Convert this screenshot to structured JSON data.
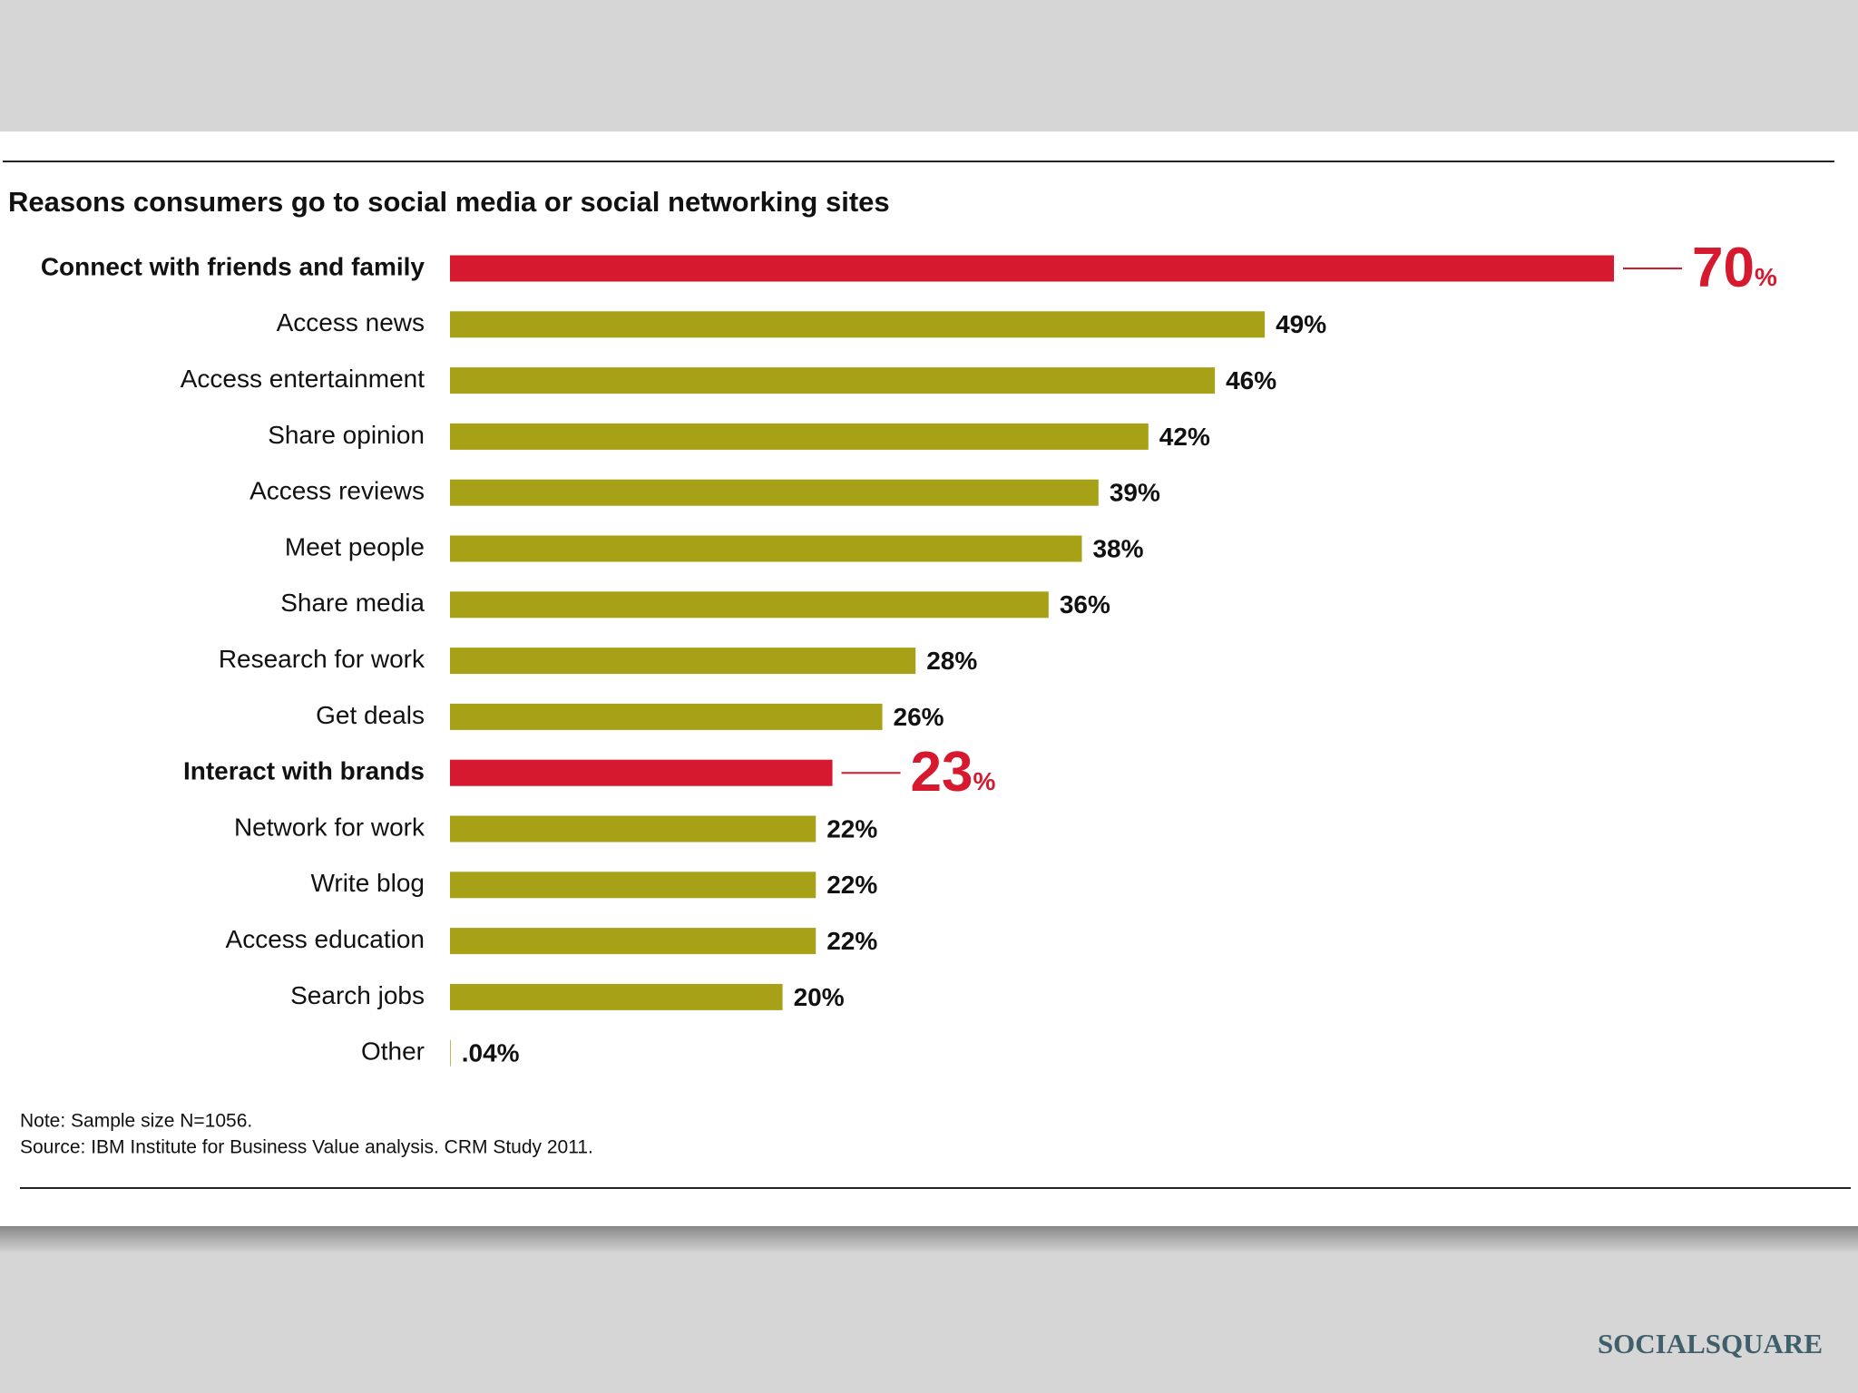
{
  "chart_data": {
    "type": "bar",
    "orientation": "horizontal",
    "title": "Reasons consumers go to social media or social networking sites",
    "categories": [
      "Connect with friends and family",
      "Access news",
      "Access entertainment",
      "Share opinion",
      "Access reviews",
      "Meet people",
      "Share media",
      "Research for work",
      "Get deals",
      "Interact with brands",
      "Network for work",
      "Write blog",
      "Access education",
      "Search jobs",
      "Other"
    ],
    "values": [
      70,
      49,
      46,
      42,
      39,
      38,
      36,
      28,
      26,
      23,
      22,
      22,
      22,
      20,
      0.04
    ],
    "value_labels": [
      "70%",
      "49%",
      "46%",
      "42%",
      "39%",
      "38%",
      "36%",
      "28%",
      "26%",
      "23%",
      "22%",
      "22%",
      "22%",
      "20%",
      ".04%"
    ],
    "color": "#a6a116",
    "highlight_color": "#d6192e",
    "highlight": [
      0,
      9
    ],
    "notes": [
      "Note: Sample size N=1056.",
      "Source: IBM Institute for Business Value analysis. CRM Study 2011."
    ]
  },
  "footer": {
    "logo": "SOCIALSQUARE"
  }
}
